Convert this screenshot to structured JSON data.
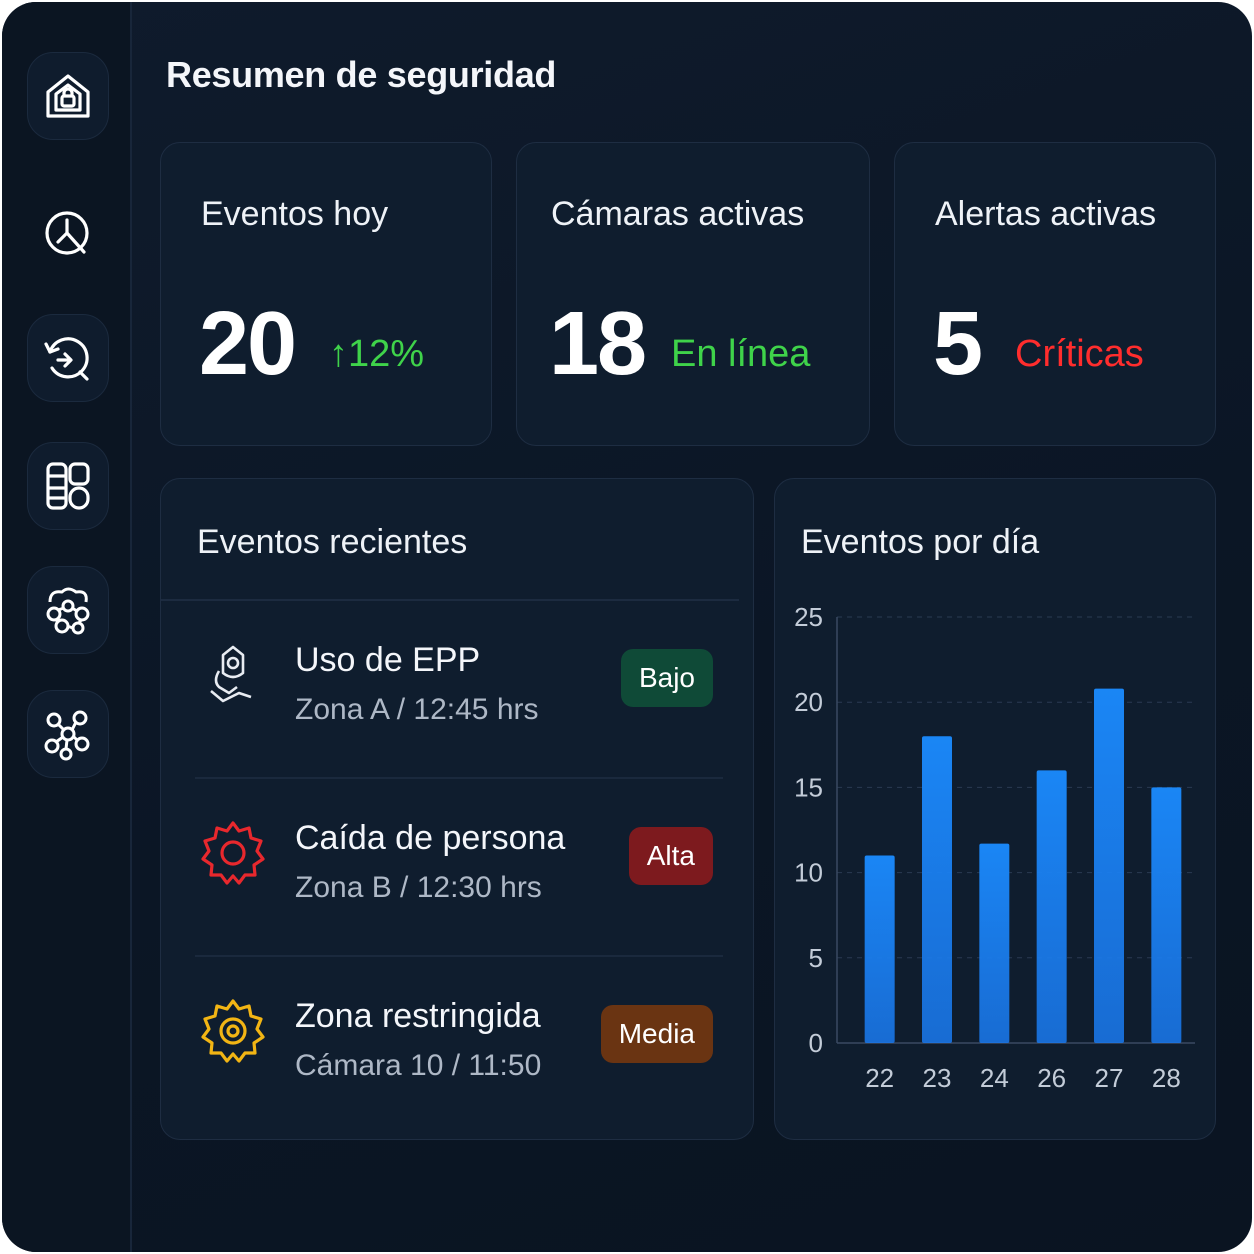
{
  "page_title": "Resumen de seguridad",
  "sidebar": {
    "items": [
      {
        "icon": "home-shield-icon"
      },
      {
        "icon": "clock-icon"
      },
      {
        "icon": "history-icon"
      },
      {
        "icon": "grid-icon"
      },
      {
        "icon": "network-icon"
      },
      {
        "icon": "nodes-icon"
      }
    ]
  },
  "stats": {
    "events_today": {
      "title": "Eventos hoy",
      "value": "20",
      "change": "↑12%",
      "change_color": "#3fd34a"
    },
    "active_cameras": {
      "title": "Cámaras activas",
      "value": "18",
      "status": "En línea",
      "status_color": "#3fd34a"
    },
    "active_alerts": {
      "title": "Alertas activas",
      "value": "5",
      "status": "Críticas",
      "status_color": "#ff2d2d"
    }
  },
  "recent_events": {
    "title": "Eventos recientes",
    "items": [
      {
        "title": "Uso de EPP",
        "subtitle": "Zona A / 12:45 hrs",
        "badge": "Bajo",
        "badge_color": "#0f4a37",
        "icon": "ppe-icon"
      },
      {
        "title": "Caída de persona",
        "subtitle": "Zona B / 12:30 hrs",
        "badge": "Alta",
        "badge_color": "#7d1a1e",
        "icon": "alert-gear-red-icon"
      },
      {
        "title": "Zona restringida",
        "subtitle": "Cámara 10 / 11:50",
        "badge": "Media",
        "badge_color": "#6a3412",
        "icon": "alert-gear-yellow-icon"
      }
    ]
  },
  "chart_data": {
    "type": "bar",
    "title": "Eventos por día",
    "categories": [
      "22",
      "23",
      "24",
      "26",
      "27",
      "28"
    ],
    "values": [
      11,
      18,
      11.7,
      16,
      20.8,
      15
    ],
    "ylim": [
      0,
      25
    ],
    "yticks": [
      0,
      5,
      10,
      15,
      20,
      25
    ],
    "grid": true,
    "bar_color": "#1a7af0"
  }
}
